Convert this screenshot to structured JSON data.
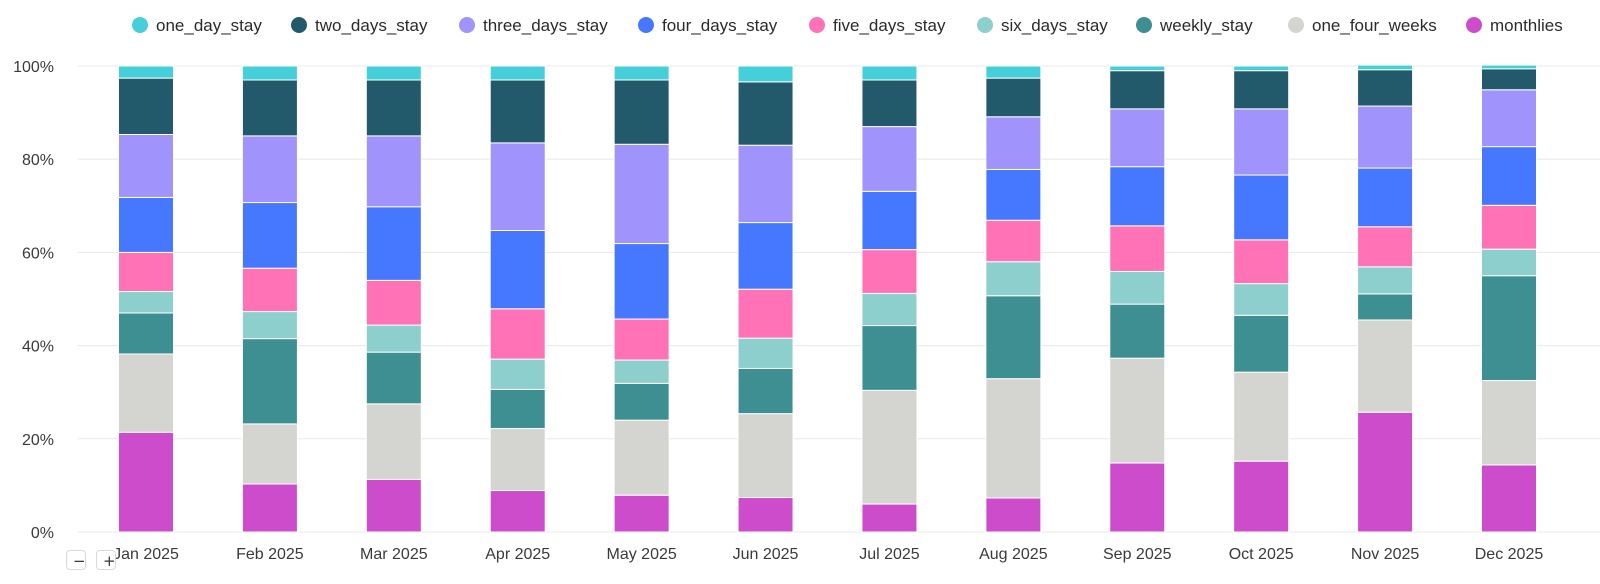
{
  "colors": {
    "one_day_stay": "#45cfd8",
    "two_days_stay": "#235a6b",
    "three_days_stay": "#a093fb",
    "four_days_stay": "#4677ff",
    "five_days_stay": "#ff72b6",
    "six_days_stay": "#8ccfcc",
    "weekly_stay": "#3e8f91",
    "one_four_weeks": "#d4d4d0",
    "monthlies": "#cd4ccb",
    "grid": "#e8e8e8"
  },
  "controls": {
    "zoom_out": "−",
    "zoom_in": "+"
  },
  "chart_data": {
    "type": "bar",
    "stacked": true,
    "normalized": true,
    "title": "",
    "xlabel": "",
    "ylabel": "",
    "ylim": [
      0,
      100
    ],
    "y_ticks": [
      "0%",
      "20%",
      "40%",
      "60%",
      "80%",
      "100%"
    ],
    "legend_position": "top",
    "categories": [
      "Jan 2025",
      "Feb 2025",
      "Mar 2025",
      "Apr 2025",
      "May 2025",
      "Jun 2025",
      "Jul 2025",
      "Aug 2025",
      "Sep 2025",
      "Oct 2025",
      "Nov 2025",
      "Dec 2025"
    ],
    "series": [
      {
        "name": "one_day_stay",
        "values": [
          2.6,
          3.0,
          3.0,
          3.0,
          3.0,
          3.4,
          3.0,
          2.6,
          1.0,
          1.0,
          1.0,
          0.8
        ]
      },
      {
        "name": "two_days_stay",
        "values": [
          12.1,
          12.0,
          12.0,
          13.5,
          13.8,
          13.6,
          10.0,
          8.3,
          8.2,
          8.2,
          7.8,
          4.5
        ]
      },
      {
        "name": "three_days_stay",
        "values": [
          13.5,
          14.3,
          15.2,
          18.8,
          21.3,
          16.6,
          13.9,
          11.3,
          12.4,
          14.2,
          13.3,
          12.2
        ]
      },
      {
        "name": "four_days_stay",
        "values": [
          11.8,
          14.1,
          15.8,
          16.8,
          16.2,
          14.3,
          12.5,
          10.9,
          12.7,
          13.9,
          12.6,
          12.6
        ]
      },
      {
        "name": "five_days_stay",
        "values": [
          8.4,
          9.3,
          9.6,
          10.8,
          8.8,
          10.5,
          9.4,
          8.9,
          9.8,
          9.4,
          8.6,
          9.4
        ]
      },
      {
        "name": "six_days_stay",
        "values": [
          4.6,
          5.8,
          5.8,
          6.5,
          5.0,
          6.5,
          6.9,
          7.3,
          7.0,
          6.8,
          5.8,
          5.7
        ]
      },
      {
        "name": "weekly_stay",
        "values": [
          8.8,
          18.3,
          11.1,
          8.4,
          7.9,
          9.7,
          13.9,
          17.8,
          11.6,
          12.2,
          5.6,
          22.5
        ]
      },
      {
        "name": "one_four_weeks",
        "values": [
          16.8,
          12.9,
          16.2,
          13.3,
          16.1,
          18.0,
          24.4,
          25.6,
          22.5,
          19.1,
          19.8,
          18.1
        ]
      },
      {
        "name": "monthlies",
        "values": [
          21.4,
          10.3,
          11.3,
          8.9,
          7.9,
          7.4,
          6.0,
          7.3,
          14.8,
          15.2,
          25.7,
          14.4
        ]
      }
    ]
  }
}
